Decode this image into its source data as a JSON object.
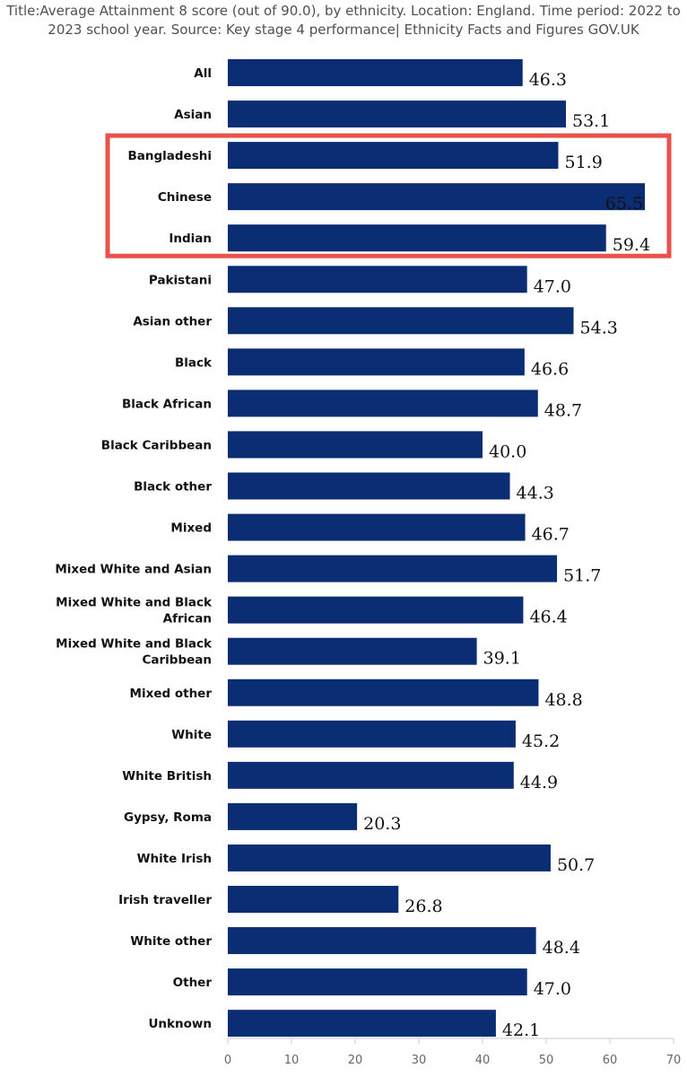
{
  "title_lines": [
    "Title:Average Attainment 8 score (out of 90.0), by ethnicity. Location: England. Time period: 2022 to",
    "2023 school year. Source: Key stage 4 performance| Ethnicity Facts and Figures GOV.UK"
  ],
  "highlight": {
    "color": "#e8524a",
    "categories": [
      "Bangladeshi",
      "Chinese",
      "Indian"
    ]
  },
  "chart_data": {
    "type": "bar",
    "orientation": "horizontal",
    "title": "Title:Average Attainment 8 score (out of 90.0), by ethnicity. Location: England. Time period: 2022 to 2023 school year. Source: Key stage 4 performance| Ethnicity Facts and Figures GOV.UK",
    "categories": [
      "All",
      "Asian",
      "Bangladeshi",
      "Chinese",
      "Indian",
      "Pakistani",
      "Asian other",
      "Black",
      "Black African",
      "Black Caribbean",
      "Black other",
      "Mixed",
      "Mixed White and Asian",
      "Mixed White and Black African",
      "Mixed White and Black Caribbean",
      "Mixed other",
      "White",
      "White British",
      "Gypsy, Roma",
      "White Irish",
      "Irish traveller",
      "White other",
      "Other",
      "Unknown"
    ],
    "values": [
      46.3,
      53.1,
      51.9,
      65.5,
      59.4,
      47.0,
      54.3,
      46.6,
      48.7,
      40.0,
      44.3,
      46.7,
      51.7,
      46.4,
      39.1,
      48.8,
      45.2,
      44.9,
      20.3,
      50.7,
      26.8,
      48.4,
      47.0,
      42.1
    ],
    "value_labels": [
      "46.3",
      "53.1",
      "51.9",
      "65.5",
      "59.4",
      "47.0",
      "54.3",
      "46.6",
      "48.7",
      "40.0",
      "44.3",
      "46.7",
      "51.7",
      "46.4",
      "39.1",
      "48.8",
      "45.2",
      "44.9",
      "20.3",
      "50.7",
      "26.8",
      "48.4",
      "47.0",
      "42.1"
    ],
    "xlim": [
      0,
      70
    ],
    "xticks": [
      0,
      10,
      20,
      30,
      40,
      50,
      60,
      70
    ],
    "xlabel": "",
    "ylabel": "",
    "bar_color": "#0b2d73",
    "grid": false,
    "legend": "none"
  }
}
